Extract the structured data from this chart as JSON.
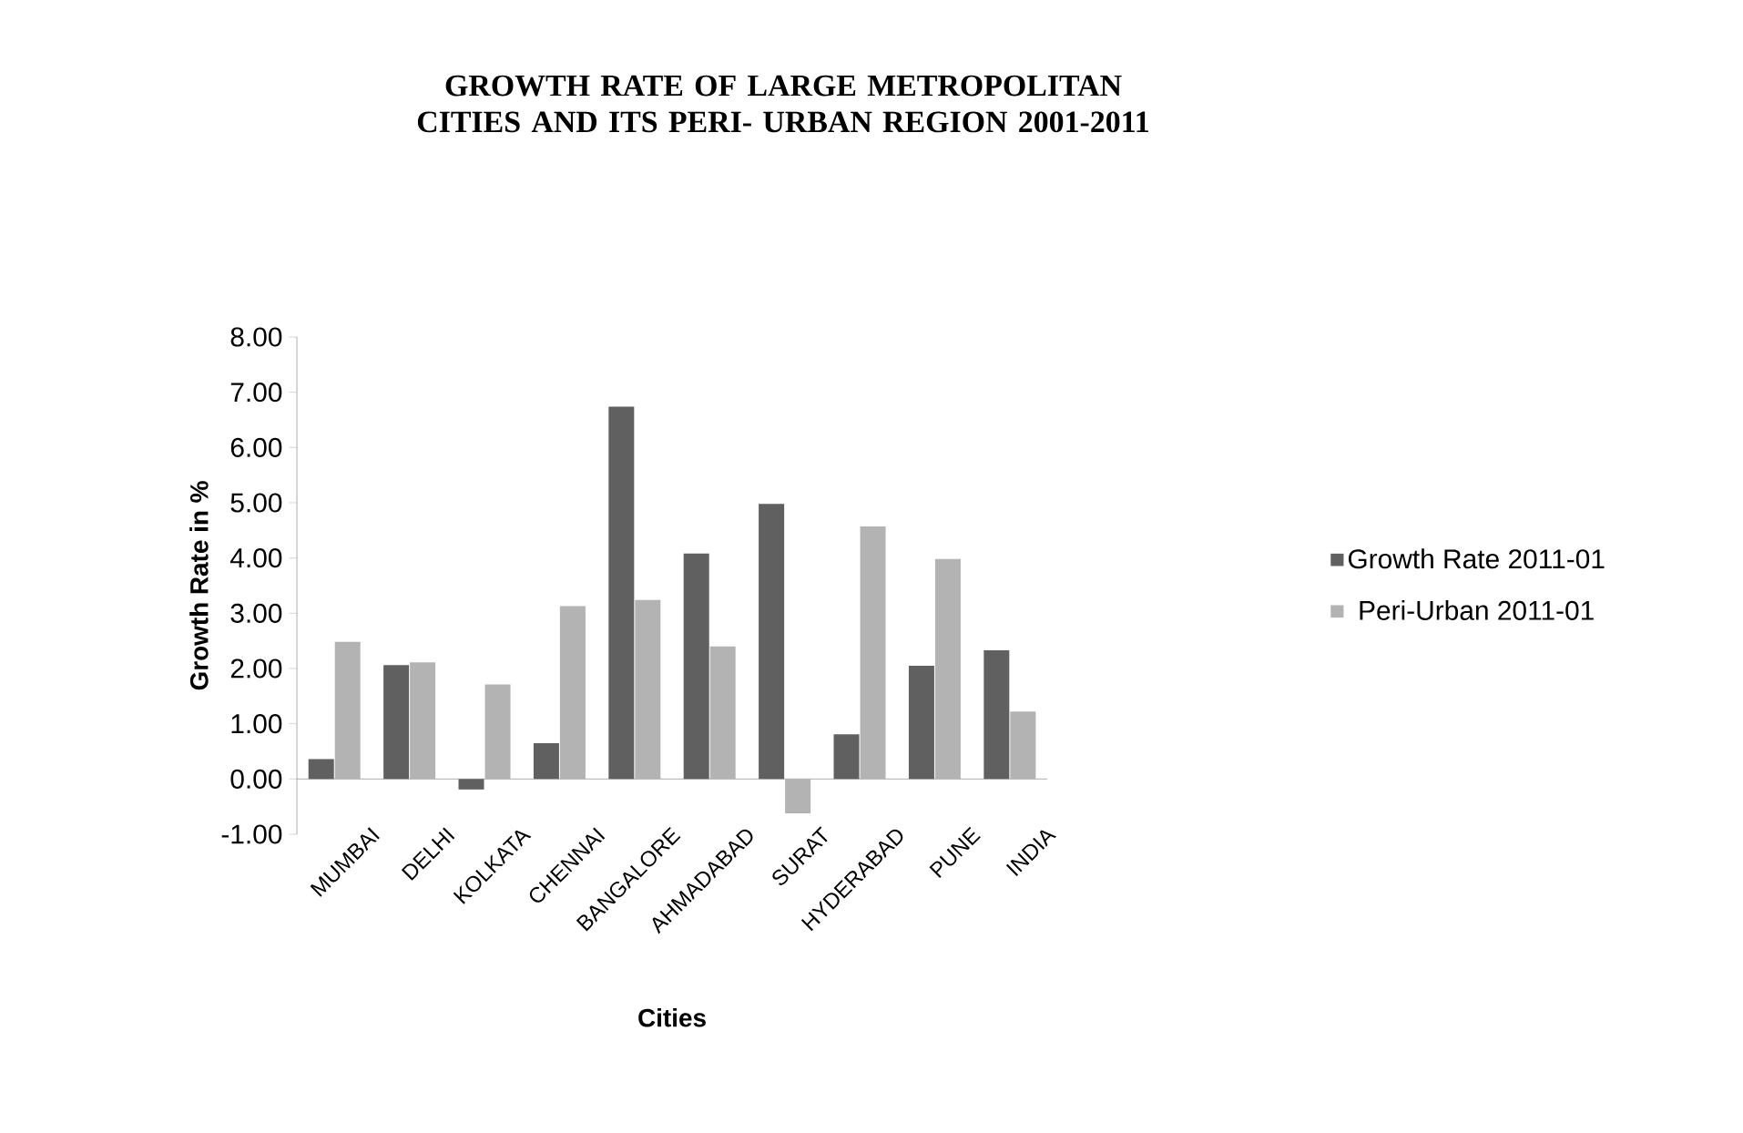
{
  "chart_data": {
    "type": "bar",
    "title": "GROWTH RATE OF LARGE METROPOLITAN CITIES AND ITS PERI- URBAN REGION 2001-2011",
    "xlabel": "Cities",
    "ylabel": "Growth Rate in %",
    "categories": [
      "MUMBAI",
      "DELHI",
      "KOLKATA",
      "CHENNAI",
      "BANGALORE",
      "AHMADABAD",
      "SURAT",
      "HYDERABAD",
      "PUNE",
      "INDIA"
    ],
    "series": [
      {
        "name": "Growth Rate 2011-01",
        "color": "#606060",
        "values": [
          0.36,
          2.06,
          -0.19,
          0.65,
          6.74,
          4.08,
          4.98,
          0.81,
          2.05,
          2.33
        ]
      },
      {
        "name": "Peri-Urban 2011-01",
        "color": "#b3b3b3",
        "values": [
          2.48,
          2.11,
          1.71,
          3.13,
          3.24,
          2.4,
          -0.62,
          4.57,
          3.98,
          1.22
        ]
      }
    ],
    "ylim": [
      -1,
      8
    ],
    "yticks": [
      {
        "value": -1,
        "label": "-1.00"
      },
      {
        "value": 0,
        "label": "0.00"
      },
      {
        "value": 1,
        "label": "1.00"
      },
      {
        "value": 2,
        "label": "2.00"
      },
      {
        "value": 3,
        "label": "3.00"
      },
      {
        "value": 4,
        "label": "4.00"
      },
      {
        "value": 5,
        "label": "5.00"
      },
      {
        "value": 6,
        "label": "6.00"
      },
      {
        "value": 7,
        "label": "7.00"
      },
      {
        "value": 8,
        "label": "8.00"
      }
    ],
    "legend": "right",
    "grid": false
  }
}
